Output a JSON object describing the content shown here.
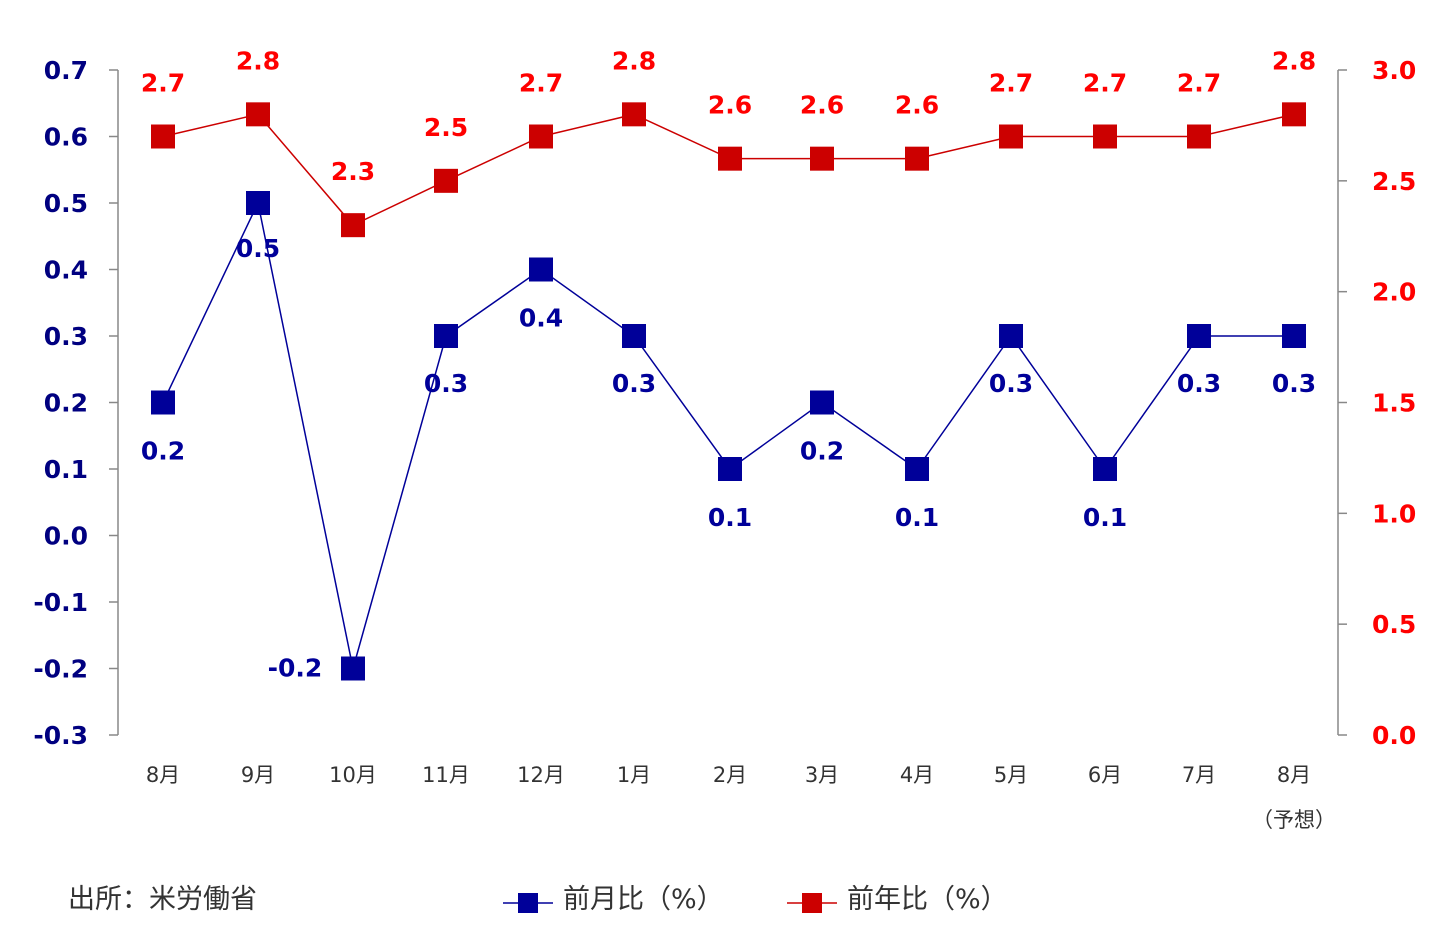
{
  "chart_data": {
    "type": "line",
    "categories": [
      "8月",
      "9月",
      "10月",
      "11月",
      "12月",
      "1月",
      "2月",
      "3月",
      "4月",
      "5月",
      "6月",
      "7月",
      "8月"
    ],
    "category_note": "（予想）",
    "series": [
      {
        "name": "前月比（%）",
        "axis": "left",
        "color": "#000099",
        "values": [
          0.2,
          0.5,
          -0.2,
          0.3,
          0.4,
          0.3,
          0.1,
          0.2,
          0.1,
          0.3,
          0.1,
          0.3,
          0.3
        ],
        "labels": [
          "0.2",
          "0.5",
          "-0.2",
          "0.3",
          "0.4",
          "0.3",
          "0.1",
          "0.2",
          "0.1",
          "0.3",
          "0.1",
          "0.3",
          "0.3"
        ]
      },
      {
        "name": "前年比（%）",
        "axis": "right",
        "color": "#cc0000",
        "values": [
          2.7,
          2.8,
          2.3,
          2.5,
          2.7,
          2.8,
          2.6,
          2.6,
          2.6,
          2.7,
          2.7,
          2.7,
          2.8
        ],
        "labels": [
          "2.7",
          "2.8",
          "2.3",
          "2.5",
          "2.7",
          "2.8",
          "2.6",
          "2.6",
          "2.6",
          "2.7",
          "2.7",
          "2.7",
          "2.8"
        ]
      }
    ],
    "y_left": {
      "ylim": [
        -0.3,
        0.7
      ],
      "ticks": [
        "0.7",
        "0.6",
        "0.5",
        "0.4",
        "0.3",
        "0.2",
        "0.1",
        "0.0",
        "-0.1",
        "-0.2",
        "-0.3"
      ],
      "color": "#000080"
    },
    "y_right": {
      "ylim": [
        0.0,
        3.0
      ],
      "ticks": [
        "3.0",
        "2.5",
        "2.0",
        "1.5",
        "1.0",
        "0.5",
        "0.0"
      ],
      "color": "#ff0000"
    },
    "grid": false,
    "legend_position": "bottom-center"
  },
  "footer": {
    "source": "出所：米労働省"
  }
}
